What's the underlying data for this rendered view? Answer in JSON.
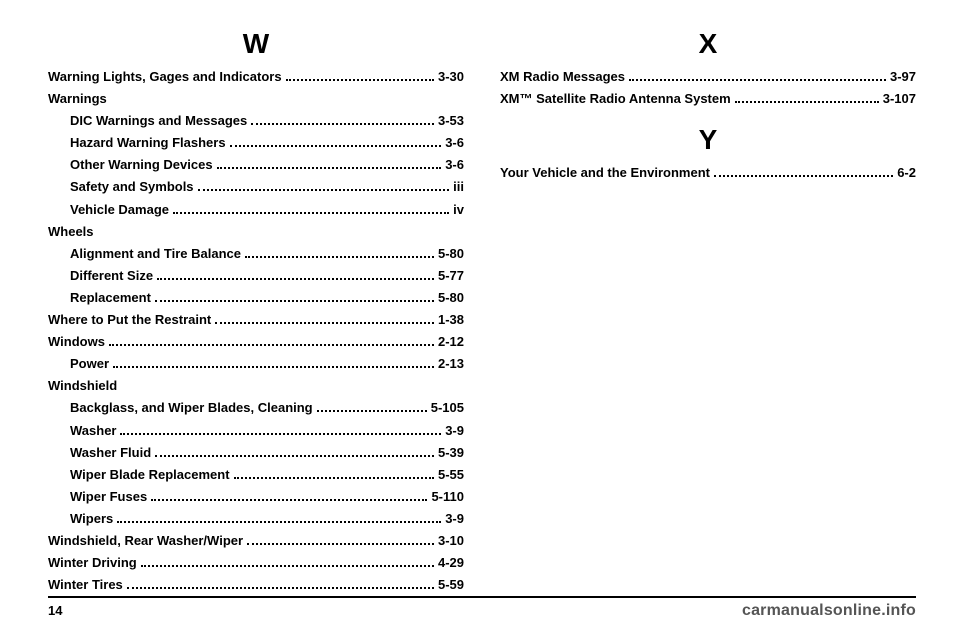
{
  "footer": {
    "page_number": "14",
    "watermark": "carmanualsonline.info"
  },
  "left": {
    "letter": "W",
    "entries": [
      {
        "label": "Warning Lights, Gages and Indicators",
        "page": "3-30",
        "indent": 0
      },
      {
        "label": "Warnings",
        "page": null,
        "indent": 0
      },
      {
        "label": "DIC Warnings and Messages",
        "page": "3-53",
        "indent": 1
      },
      {
        "label": "Hazard Warning Flashers",
        "page": "3-6",
        "indent": 1
      },
      {
        "label": "Other Warning Devices",
        "page": "3-6",
        "indent": 1
      },
      {
        "label": "Safety and Symbols",
        "page": "iii",
        "indent": 1
      },
      {
        "label": "Vehicle Damage",
        "page": "iv",
        "indent": 1
      },
      {
        "label": "Wheels",
        "page": null,
        "indent": 0
      },
      {
        "label": "Alignment and Tire Balance",
        "page": "5-80",
        "indent": 1
      },
      {
        "label": "Different Size",
        "page": "5-77",
        "indent": 1
      },
      {
        "label": "Replacement",
        "page": "5-80",
        "indent": 1
      },
      {
        "label": "Where to Put the Restraint",
        "page": "1-38",
        "indent": 0
      },
      {
        "label": "Windows",
        "page": "2-12",
        "indent": 0
      },
      {
        "label": "Power",
        "page": "2-13",
        "indent": 1
      },
      {
        "label": "Windshield",
        "page": null,
        "indent": 0
      },
      {
        "label": "Backglass, and Wiper Blades, Cleaning",
        "page": "5-105",
        "indent": 1
      },
      {
        "label": "Washer",
        "page": "3-9",
        "indent": 1
      },
      {
        "label": "Washer Fluid",
        "page": "5-39",
        "indent": 1
      },
      {
        "label": "Wiper Blade Replacement",
        "page": "5-55",
        "indent": 1
      },
      {
        "label": "Wiper Fuses",
        "page": "5-110",
        "indent": 1
      },
      {
        "label": "Wipers",
        "page": "3-9",
        "indent": 1
      },
      {
        "label": "Windshield, Rear Washer/Wiper",
        "page": "3-10",
        "indent": 0
      },
      {
        "label": "Winter Driving",
        "page": "4-29",
        "indent": 0
      },
      {
        "label": "Winter Tires",
        "page": "5-59",
        "indent": 0
      }
    ]
  },
  "right": {
    "sections": [
      {
        "letter": "X",
        "entries": [
          {
            "label": "XM Radio Messages",
            "page": "3-97",
            "indent": 0
          },
          {
            "label": "XM™ Satellite Radio Antenna System",
            "page": "3-107",
            "indent": 0
          }
        ]
      },
      {
        "letter": "Y",
        "entries": [
          {
            "label": "Your Vehicle and the Environment",
            "page": "6-2",
            "indent": 0
          }
        ]
      }
    ]
  }
}
